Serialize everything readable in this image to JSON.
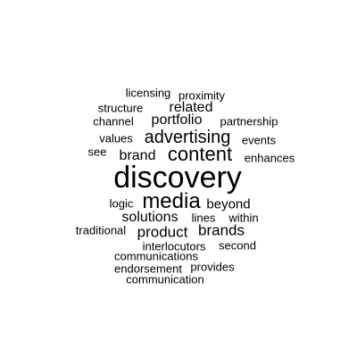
{
  "words": [
    {
      "text": "licensing"
    },
    {
      "text": "proximity"
    },
    {
      "text": "structure"
    },
    {
      "text": "related"
    },
    {
      "text": "channel"
    },
    {
      "text": "portfolio"
    },
    {
      "text": "partnership"
    },
    {
      "text": "values"
    },
    {
      "text": "advertising"
    },
    {
      "text": "events"
    },
    {
      "text": "see"
    },
    {
      "text": "brand"
    },
    {
      "text": "content"
    },
    {
      "text": "enhances"
    },
    {
      "text": "discovery"
    },
    {
      "text": "logic"
    },
    {
      "text": "media"
    },
    {
      "text": "beyond"
    },
    {
      "text": "solutions"
    },
    {
      "text": "lines"
    },
    {
      "text": "within"
    },
    {
      "text": "traditional"
    },
    {
      "text": "product"
    },
    {
      "text": "brands"
    },
    {
      "text": "interlocutors"
    },
    {
      "text": "second"
    },
    {
      "text": "communications"
    },
    {
      "text": "endorsement"
    },
    {
      "text": "provides"
    },
    {
      "text": "communication"
    }
  ]
}
